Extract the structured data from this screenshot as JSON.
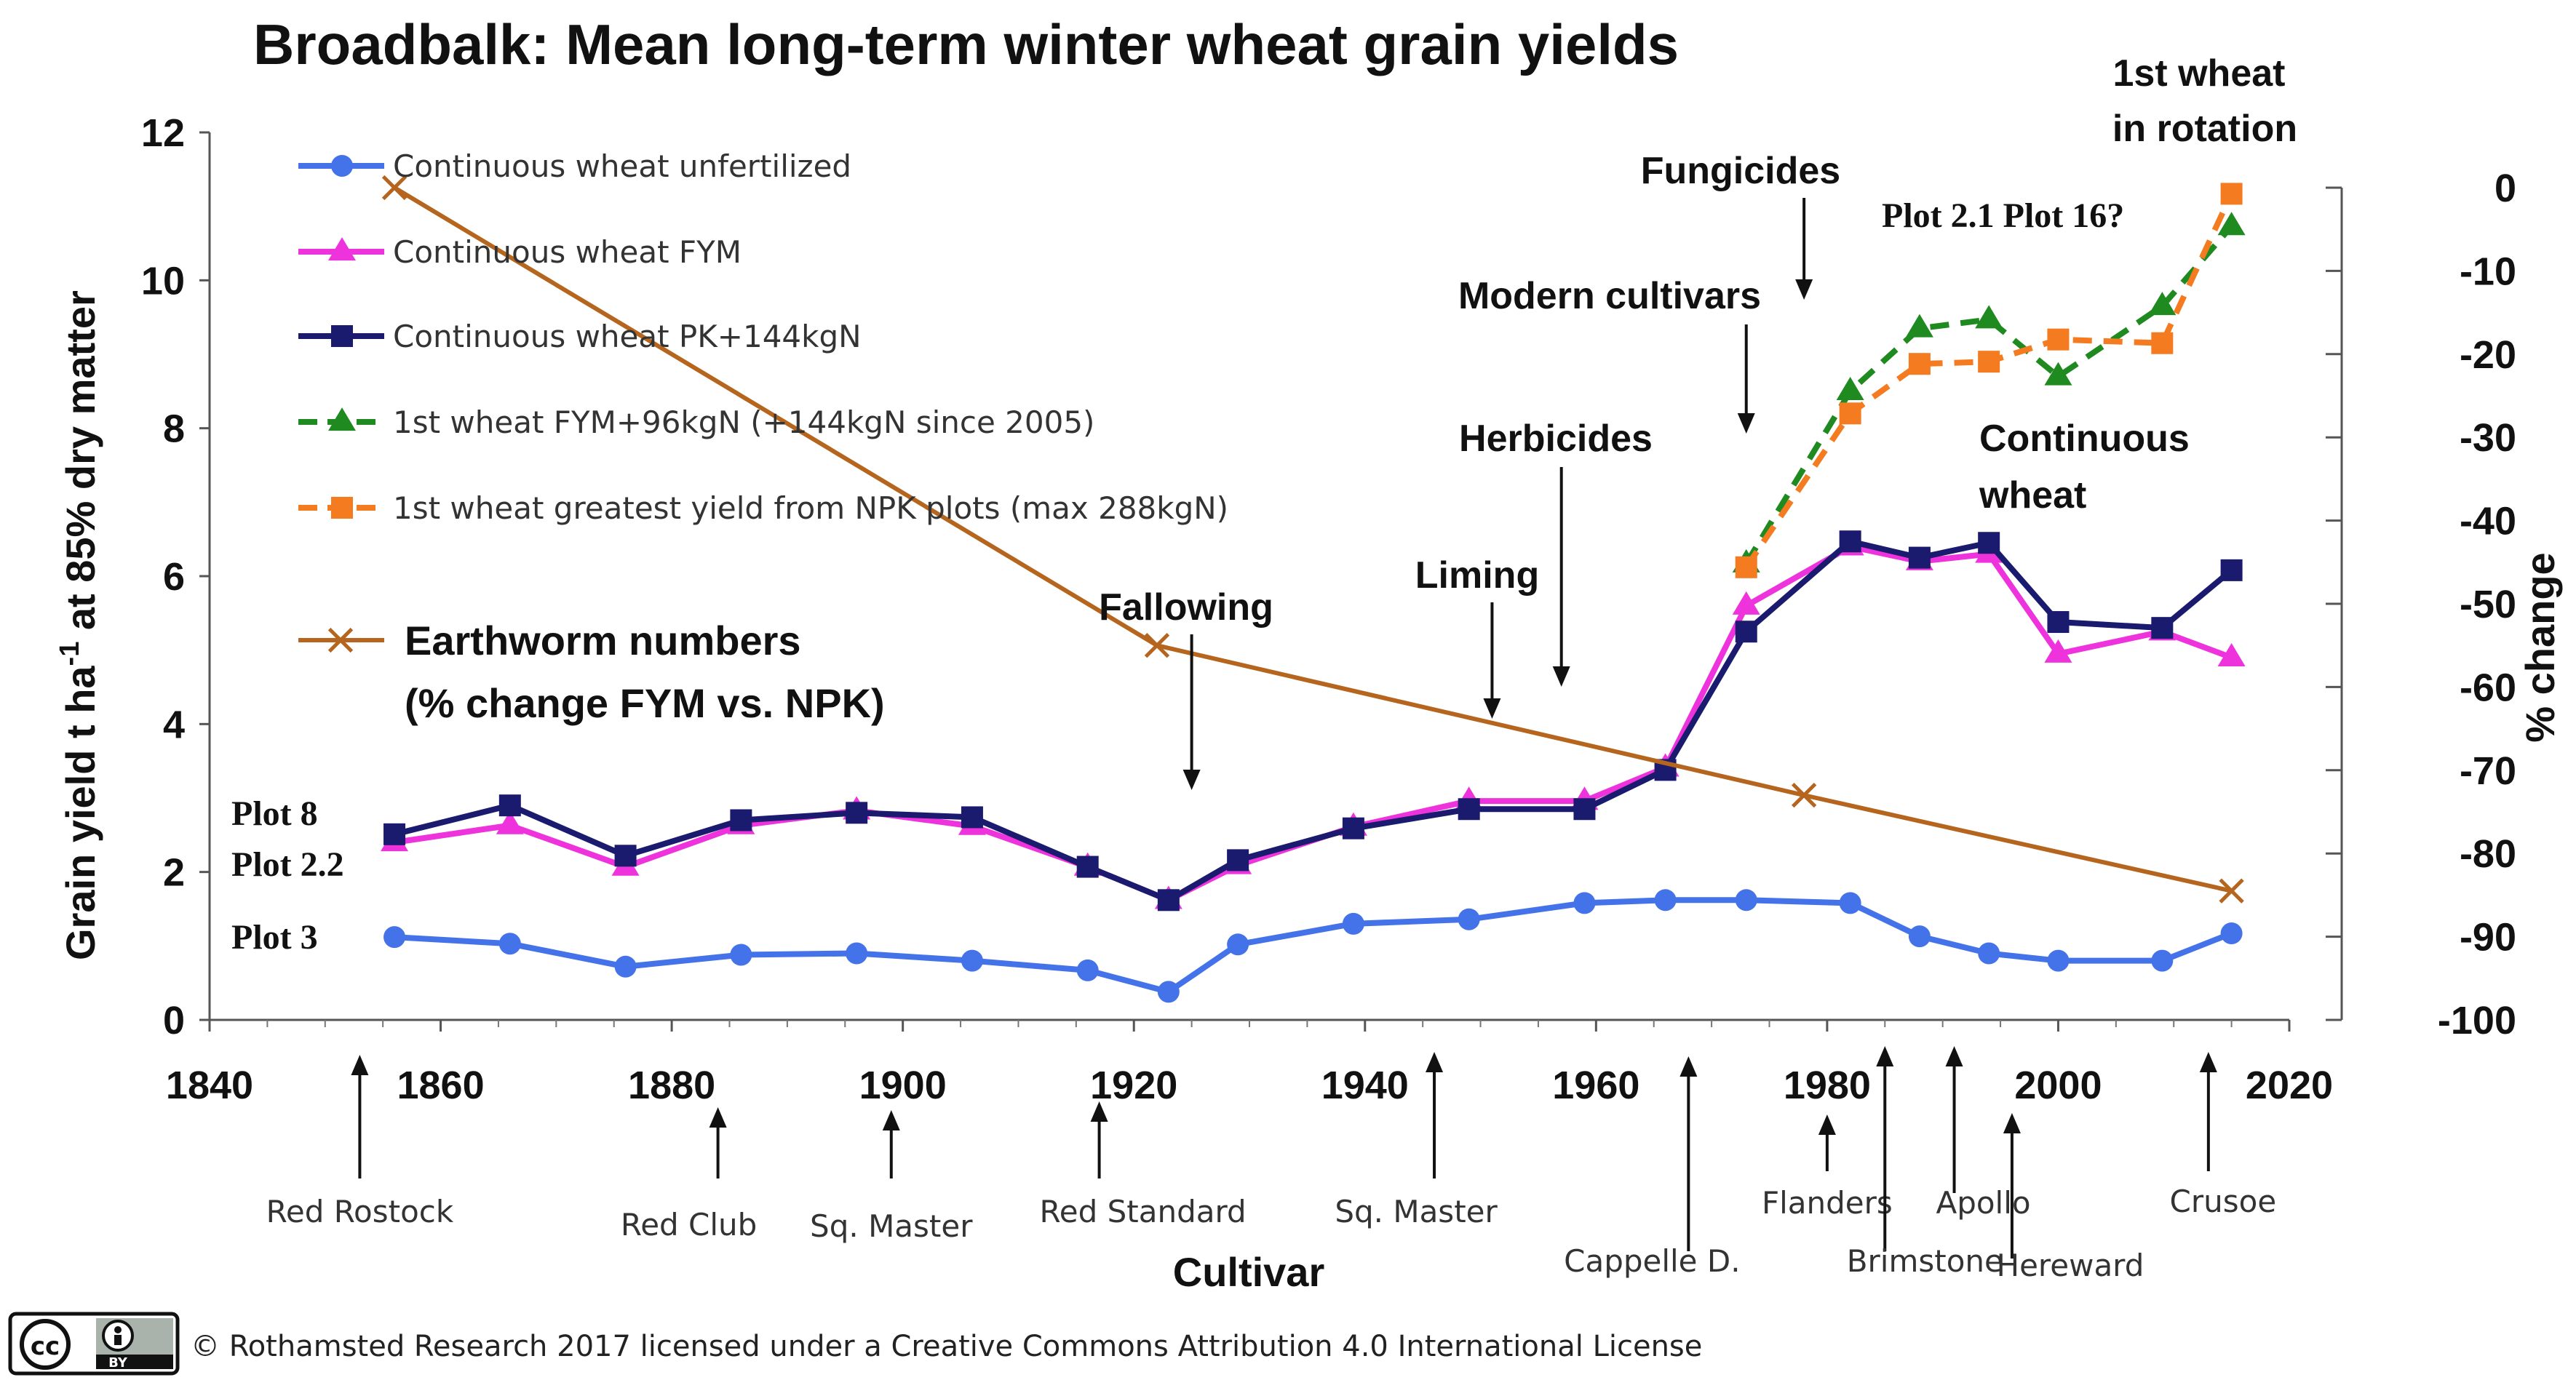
{
  "chart_data": {
    "type": "line",
    "title": "Broadbalk: Mean long-term winter wheat grain yields",
    "ylabel_main": "Grain yield t ha",
    "ylabel_sup": "-1",
    "ylabel_rest": " at 85% dry matter",
    "y2label": "% change",
    "xlabel": "Cultivar",
    "xlim": [
      1840,
      2020
    ],
    "ylim": [
      0,
      12
    ],
    "y2lim": [
      -100,
      0
    ],
    "x_ticks": [
      "1840",
      "1860",
      "1880",
      "1900",
      "1920",
      "1940",
      "1960",
      "1980",
      "2000",
      "2020"
    ],
    "y_ticks": [
      "0",
      "2",
      "4",
      "6",
      "8",
      "10",
      "12"
    ],
    "y2_ticks": [
      "0",
      "-10",
      "-20",
      "-30",
      "-40",
      "-50",
      "-60",
      "-70",
      "-80",
      "-90",
      "-100"
    ],
    "series": [
      {
        "name": "Continuous wheat unfertilized",
        "color": "#4472e8",
        "marker": "circle",
        "dash": false,
        "x": [
          1856,
          1866,
          1876,
          1886,
          1896,
          1906,
          1916,
          1923,
          1929,
          1939,
          1949,
          1959,
          1966,
          1973,
          1982,
          1988,
          1994,
          2000,
          2009,
          2015
        ],
        "y": [
          1.12,
          1.03,
          0.72,
          0.88,
          0.9,
          0.8,
          0.67,
          0.38,
          1.02,
          1.3,
          1.36,
          1.58,
          1.62,
          1.62,
          1.58,
          1.13,
          0.9,
          0.8,
          0.8,
          1.17
        ]
      },
      {
        "name": "Continuous wheat FYM",
        "color": "#ee33dd",
        "marker": "triangle",
        "dash": false,
        "x": [
          1856,
          1866,
          1876,
          1886,
          1896,
          1906,
          1916,
          1923,
          1929,
          1939,
          1949,
          1959,
          1966,
          1973,
          1982,
          1988,
          1994,
          2000,
          2009,
          2015
        ],
        "y": [
          2.4,
          2.63,
          2.07,
          2.63,
          2.83,
          2.62,
          2.07,
          1.62,
          2.09,
          2.61,
          2.96,
          2.96,
          3.41,
          5.6,
          6.4,
          6.2,
          6.3,
          4.95,
          5.25,
          4.9
        ]
      },
      {
        "name": "Continuous wheat PK+144kgN",
        "color": "#1a1a6e",
        "marker": "square",
        "dash": false,
        "x": [
          1856,
          1866,
          1876,
          1886,
          1896,
          1906,
          1916,
          1923,
          1929,
          1939,
          1949,
          1959,
          1966,
          1973,
          1982,
          1988,
          1994,
          2000,
          2009,
          2015
        ],
        "y": [
          2.51,
          2.9,
          2.22,
          2.7,
          2.8,
          2.74,
          2.07,
          1.62,
          2.16,
          2.59,
          2.85,
          2.85,
          3.38,
          5.25,
          6.47,
          6.25,
          6.45,
          5.38,
          5.3,
          6.08
        ]
      },
      {
        "name": "1st wheat FYM+96kgN (+144kgN since 2005)",
        "color": "#1f8a1f",
        "marker": "triangle",
        "dash": true,
        "x": [
          1973,
          1982,
          1988,
          1994,
          2000,
          2009,
          2015
        ],
        "y": [
          6.17,
          8.5,
          9.35,
          9.47,
          8.7,
          9.65,
          10.73
        ]
      },
      {
        "name": "1st wheat greatest yield from NPK plots (max 288kgN)",
        "color": "#f47b20",
        "marker": "square",
        "dash": true,
        "x": [
          1973,
          1982,
          1988,
          1994,
          2000,
          2009,
          2015
        ],
        "y": [
          6.12,
          8.2,
          8.87,
          8.9,
          9.2,
          9.15,
          11.17
        ]
      },
      {
        "name": "Earthworm numbers",
        "color": "#b5651d",
        "marker": "x",
        "dash": false,
        "axis": "y2",
        "x": [
          1856,
          1922,
          1978,
          2015
        ],
        "y": [
          0,
          -55,
          -73,
          -84.5
        ]
      }
    ],
    "legend_worm": [
      "Earthworm numbers",
      "(% change FYM vs. NPK)"
    ],
    "plot_labels": [
      "Plot 8",
      "Plot 2.2",
      "Plot 3",
      "Plot 2.1 Plot 16?"
    ],
    "annotations": [
      {
        "text": "Fallowing",
        "x": 1925
      },
      {
        "text": "Liming",
        "x": 1951
      },
      {
        "text": "Herbicides",
        "x": 1957
      },
      {
        "text": "Modern cultivars",
        "x": 1973
      },
      {
        "text": "Fungicides",
        "x": 1978
      }
    ],
    "right_labels": [
      "1st wheat",
      "in rotation",
      "Continuous",
      "wheat"
    ],
    "cultivars": [
      {
        "name": "Red Rostock",
        "x": 1853
      },
      {
        "name": "Red Club",
        "x": 1884
      },
      {
        "name": "Sq. Master",
        "x": 1899
      },
      {
        "name": "Red Standard",
        "x": 1917
      },
      {
        "name": "Sq. Master",
        "x": 1946
      },
      {
        "name": "Cappelle D.",
        "x": 1968
      },
      {
        "name": "Flanders",
        "x": 1980
      },
      {
        "name": "Brimstone",
        "x": 1985
      },
      {
        "name": "Apollo",
        "x": 1991
      },
      {
        "name": "Hereward",
        "x": 1996
      },
      {
        "name": "Crusoe",
        "x": 2013
      }
    ]
  },
  "footer": {
    "license_badge": [
      "cc",
      "BY"
    ],
    "text": "© Rothamsted Research 2017 licensed under a Creative Commons Attribution 4.0 International License"
  }
}
